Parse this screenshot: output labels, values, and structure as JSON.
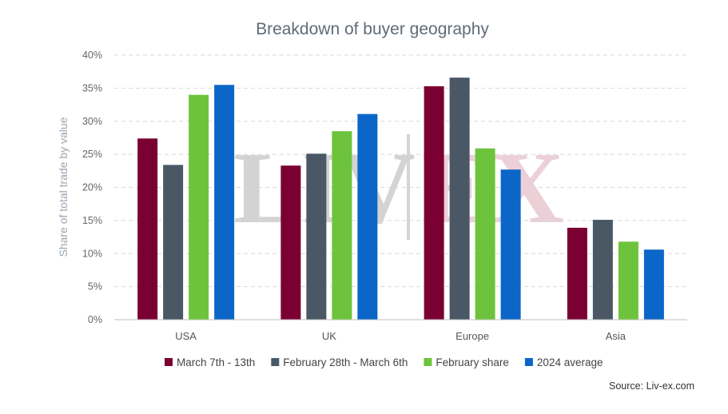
{
  "chart_data": {
    "type": "bar",
    "title": "Breakdown of buyer geography",
    "ylabel": "Share of total trade by value",
    "xlabel": "",
    "categories": [
      "USA",
      "UK",
      "Europe",
      "Asia"
    ],
    "ylim": [
      0,
      40
    ],
    "yticks": [
      "0%",
      "5%",
      "10%",
      "15%",
      "20%",
      "25%",
      "30%",
      "35%",
      "40%"
    ],
    "series": [
      {
        "name": "March 7th - 13th",
        "color": "#7b0032",
        "values": [
          27.4,
          23.3,
          35.3,
          13.9
        ]
      },
      {
        "name": "February 28th - March 6th",
        "color": "#4a5866",
        "values": [
          23.4,
          25.1,
          36.6,
          15.1
        ]
      },
      {
        "name": "February share",
        "color": "#6dc43c",
        "values": [
          34.0,
          28.5,
          25.9,
          11.8
        ]
      },
      {
        "name": "2024 average",
        "color": "#0b66c8",
        "values": [
          35.5,
          31.1,
          22.7,
          10.6
        ]
      }
    ],
    "grid": true,
    "legend_position": "bottom",
    "watermark": {
      "left": "LIV",
      "right": "EX"
    },
    "source": "Source: Liv-ex.com"
  }
}
